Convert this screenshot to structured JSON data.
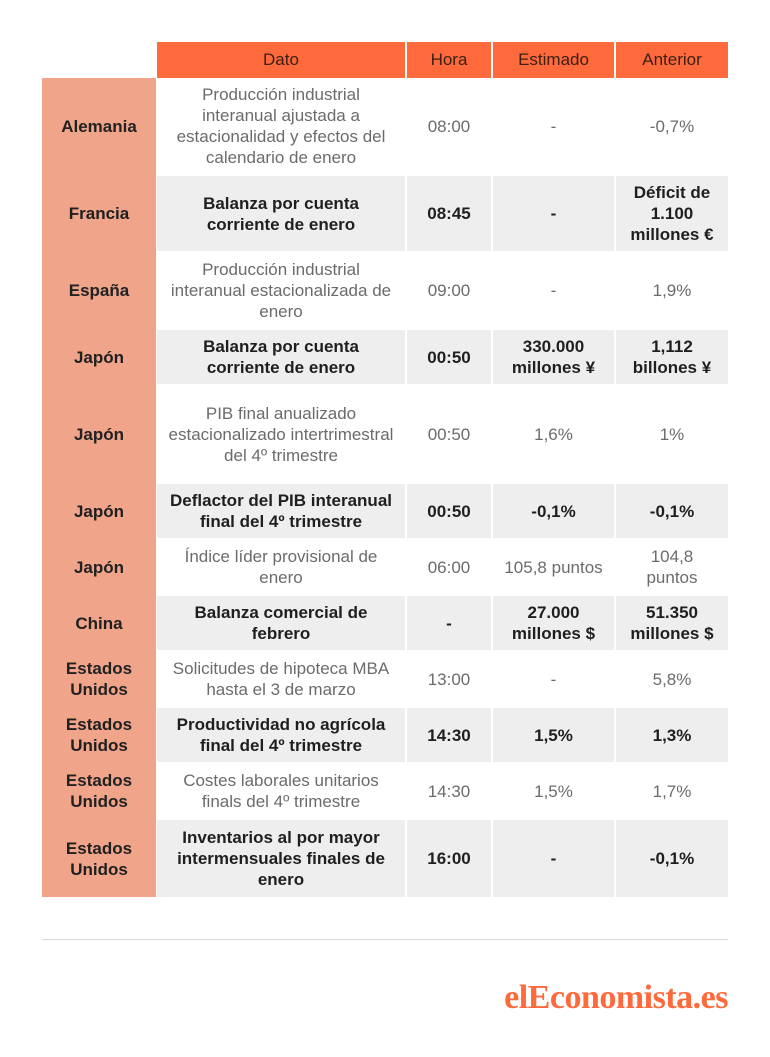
{
  "header": {
    "dato": "Dato",
    "hora": "Hora",
    "estimado": "Estimado",
    "anterior": "Anterior"
  },
  "rows": [
    {
      "country": "Alemania",
      "dato": "Producción industrial interanual ajustada a estacionalidad y efectos del calendario de enero",
      "hora": "08:00",
      "estimado": "-",
      "anterior": "-0,7%"
    },
    {
      "country": "Francia",
      "dato": "Balanza por cuenta corriente de enero",
      "hora": "08:45",
      "estimado": "-",
      "anterior": "Déficit de 1.100 millones €"
    },
    {
      "country": "España",
      "dato": "Producción industrial interanual estacionalizada de enero",
      "hora": "09:00",
      "estimado": "-",
      "anterior": "1,9%"
    },
    {
      "country": "Japón",
      "dato": "Balanza por cuenta corriente de enero",
      "hora": "00:50",
      "estimado": "330.000 millones ¥",
      "anterior": "1,112 billones ¥"
    },
    {
      "country": "Japón",
      "dato": "PIB final anualizado estacionalizado intertrimestral del 4º trimestre",
      "hora": "00:50",
      "estimado": "1,6%",
      "anterior": "1%"
    },
    {
      "country": "Japón",
      "dato": "Deflactor del PIB interanual final del 4º trimestre",
      "hora": "00:50",
      "estimado": "-0,1%",
      "anterior": "-0,1%"
    },
    {
      "country": "Japón",
      "dato": "Índice líder provisional de enero",
      "hora": "06:00",
      "estimado": "105,8 puntos",
      "anterior": "104,8 puntos"
    },
    {
      "country": "China",
      "dato": "Balanza comercial de febrero",
      "hora": "-",
      "estimado": "27.000 millones $",
      "anterior": "51.350 millones $"
    },
    {
      "country": "Estados Unidos",
      "dato": "Solicitudes de hipoteca MBA hasta el 3 de marzo",
      "hora": "13:00",
      "estimado": "-",
      "anterior": "5,8%"
    },
    {
      "country": "Estados Unidos",
      "dato": "Productividad no agrícola final del 4º trimestre",
      "hora": "14:30",
      "estimado": "1,5%",
      "anterior": "1,3%"
    },
    {
      "country": "Estados Unidos",
      "dato": "Costes laborales unitarios finals del 4º trimestre",
      "hora": "14:30",
      "estimado": "1,5%",
      "anterior": "1,7%"
    },
    {
      "country": "Estados Unidos",
      "dato": "Inventarios al por mayor intermensuales finales de enero",
      "hora": "16:00",
      "estimado": "-",
      "anterior": "-0,1%"
    }
  ],
  "logo": {
    "part1": "el",
    "part2": "Economista",
    "part3": ".es"
  },
  "colors": {
    "header": "#ff6a3d",
    "country_column": "#f0a48a",
    "alt_row": "#eeeeee",
    "logo": "#ff6a3d"
  }
}
